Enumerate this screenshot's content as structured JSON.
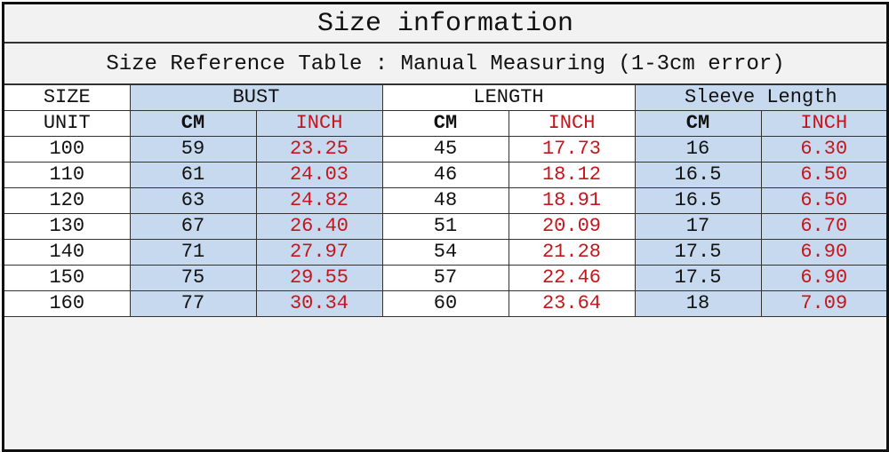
{
  "title": "Size information",
  "subtitle": "Size Reference Table : Manual Measuring (1-3cm error)",
  "colors": {
    "blue_fill": "#c6d9ee",
    "inch_text": "#c4161c",
    "border": "#111111"
  },
  "header": {
    "size": "SIZE",
    "unit": "UNIT",
    "groups": [
      "BUST",
      "LENGTH",
      "Sleeve Length"
    ],
    "units": [
      "CM",
      "INCH",
      "CM",
      "INCH",
      "CM",
      "INCH"
    ]
  },
  "rows": [
    [
      "100",
      "59",
      "23.25",
      "45",
      "17.73",
      "16",
      "6.30"
    ],
    [
      "110",
      "61",
      "24.03",
      "46",
      "18.12",
      "16.5",
      "6.50"
    ],
    [
      "120",
      "63",
      "24.82",
      "48",
      "18.91",
      "16.5",
      "6.50"
    ],
    [
      "130",
      "67",
      "26.40",
      "51",
      "20.09",
      "17",
      "6.70"
    ],
    [
      "140",
      "71",
      "27.97",
      "54",
      "21.28",
      "17.5",
      "6.90"
    ],
    [
      "150",
      "75",
      "29.55",
      "57",
      "22.46",
      "17.5",
      "6.90"
    ],
    [
      "160",
      "77",
      "30.34",
      "60",
      "23.64",
      "18",
      "7.09"
    ]
  ]
}
